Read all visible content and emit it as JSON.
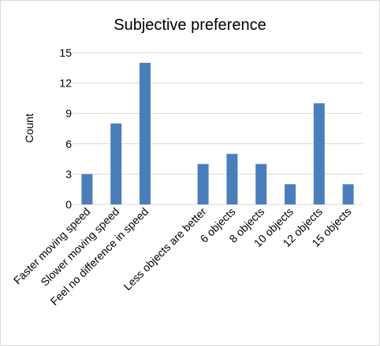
{
  "chart_data": {
    "type": "bar",
    "title": "Subjective preference",
    "ylabel": "Count",
    "xlabel": "",
    "ylim": [
      0,
      15
    ],
    "yticks": [
      0,
      3,
      6,
      9,
      12,
      15
    ],
    "grid": true,
    "legend": "none",
    "bar_color": "#4a7ebb",
    "grid_color": "#d9d9d9",
    "categories": [
      "Faster moving speed",
      "Slower moving speed",
      "Feel no difference in speed",
      "",
      "Less objects are better",
      "6 objects",
      "8 objects",
      "10 objects",
      "12 objects",
      "15 objects"
    ],
    "values": [
      3,
      8,
      14,
      null,
      4,
      5,
      4,
      2,
      10,
      2
    ]
  }
}
